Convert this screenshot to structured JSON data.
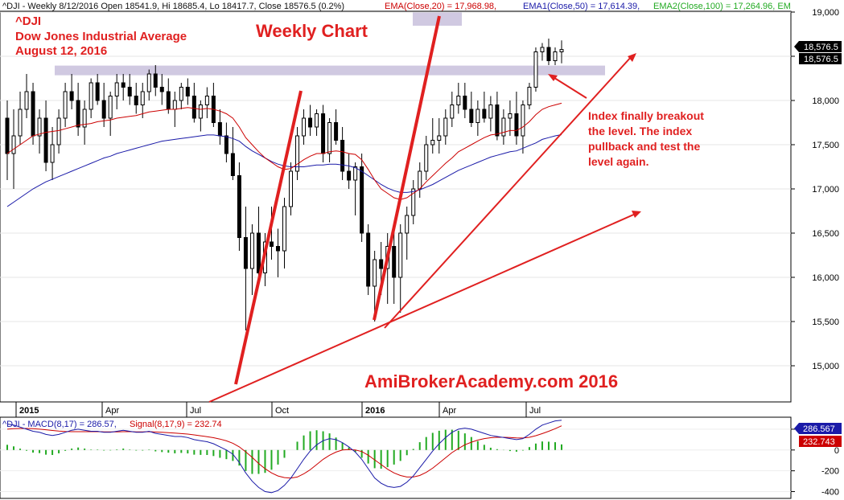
{
  "header": {
    "title_text": "^DJI - Weekly 8/12/2016 Open 18541.9, Hi 18685.4, Lo 18417.7, Close 18576.5 (0.2%)",
    "ema20_text": "EMA(Close,20) = 17,968.98,",
    "ema50_text": "EMA1(Close,50) = 17,614.39,",
    "ema100_text": "EMA2(Close,100) = 17,264.96, EM"
  },
  "overlay": {
    "ticker": "^DJI",
    "index_name": "Dow Jones Industrial Average",
    "date": "August 12, 2016",
    "chart_heading": "Weekly Chart",
    "watermark": "AmiBrokerAcademy.com  2016",
    "annotation_lines": [
      "Index finally breakout",
      "the level. The index",
      "pullback and test the",
      "level again."
    ]
  },
  "colors": {
    "annotation_red": "#e02020",
    "ema20": "#cc0000",
    "ema50": "#1a1aa8",
    "ema100": "#22aa22",
    "resistance_band": "#c8c0dc",
    "macd_line": "#1a1aa8",
    "signal_line": "#cc0000",
    "histogram": "#22aa22",
    "price_tag_bg": "#000000",
    "macd_tag_bg": "#1a1aa8",
    "signal_tag_bg": "#cc0000"
  },
  "chart_data": [
    {
      "type": "candlestick",
      "x_labels": [
        "2015",
        "Apr",
        "Jul",
        "Oct",
        "2016",
        "Apr",
        "Jul"
      ],
      "yticks": [
        15000,
        15500,
        16000,
        16500,
        17000,
        17500,
        18000,
        18500,
        19000
      ],
      "ylim": [
        14600,
        19000
      ],
      "last_price_tags": [
        "18,576.5",
        "18,576.5"
      ],
      "resistance_level": 18340,
      "candles_ohlc": [
        [
          17800,
          18000,
          17100,
          17400
        ],
        [
          17400,
          17900,
          17000,
          17600
        ],
        [
          17600,
          18100,
          17500,
          17900
        ],
        [
          17900,
          18300,
          17800,
          18100
        ],
        [
          18100,
          18200,
          17500,
          17600
        ],
        [
          17600,
          17900,
          17400,
          17800
        ],
        [
          17800,
          18000,
          17200,
          17300
        ],
        [
          17300,
          17700,
          17100,
          17500
        ],
        [
          17500,
          17900,
          17400,
          17800
        ],
        [
          17800,
          18200,
          17700,
          18100
        ],
        [
          18100,
          18300,
          17900,
          18000
        ],
        [
          18000,
          18200,
          17600,
          17700
        ],
        [
          17700,
          18000,
          17500,
          17900
        ],
        [
          17900,
          18250,
          17800,
          18200
        ],
        [
          18200,
          18300,
          17950,
          18000
        ],
        [
          18000,
          18200,
          17700,
          17800
        ],
        [
          17800,
          18100,
          17600,
          18050
        ],
        [
          18050,
          18300,
          17900,
          18200
        ],
        [
          18200,
          18300,
          18000,
          18150
        ],
        [
          18150,
          18300,
          17950,
          18050
        ],
        [
          18050,
          18200,
          17850,
          17950
        ],
        [
          17950,
          18200,
          17800,
          18100
        ],
        [
          18100,
          18350,
          18000,
          18300
        ],
        [
          18300,
          18400,
          18050,
          18150
        ],
        [
          18150,
          18300,
          17950,
          18100
        ],
        [
          18100,
          18250,
          17850,
          17900
        ],
        [
          17900,
          18100,
          17700,
          18000
        ],
        [
          18000,
          18200,
          17900,
          18150
        ],
        [
          18150,
          18250,
          17950,
          18050
        ],
        [
          18050,
          18200,
          17750,
          17800
        ],
        [
          17800,
          18000,
          17650,
          17950
        ],
        [
          17950,
          18150,
          17800,
          18050
        ],
        [
          18050,
          18200,
          17700,
          17750
        ],
        [
          17750,
          17900,
          17500,
          17600
        ],
        [
          17600,
          17750,
          17300,
          17400
        ],
        [
          17400,
          17700,
          17100,
          17150
        ],
        [
          17150,
          17300,
          16300,
          16450
        ],
        [
          16450,
          16800,
          15400,
          16100
        ],
        [
          16100,
          16600,
          15800,
          16500
        ],
        [
          16500,
          16800,
          16000,
          16050
        ],
        [
          16050,
          16500,
          15900,
          16400
        ],
        [
          16400,
          16800,
          16200,
          16350
        ],
        [
          16350,
          16550,
          16000,
          16300
        ],
        [
          16300,
          16900,
          16100,
          16800
        ],
        [
          16800,
          17300,
          16700,
          17200
        ],
        [
          17200,
          17700,
          17100,
          17600
        ],
        [
          17600,
          17900,
          17500,
          17800
        ],
        [
          17800,
          17950,
          17600,
          17700
        ],
        [
          17700,
          17900,
          17600,
          17850
        ],
        [
          17850,
          17950,
          17300,
          17400
        ],
        [
          17400,
          17800,
          17300,
          17750
        ],
        [
          17750,
          17900,
          17500,
          17550
        ],
        [
          17550,
          17700,
          17100,
          17200
        ],
        [
          17200,
          17400,
          17000,
          17100
        ],
        [
          17100,
          17300,
          16700,
          17250
        ],
        [
          17250,
          17400,
          16400,
          16500
        ],
        [
          16500,
          16600,
          15800,
          15900
        ],
        [
          15900,
          16300,
          15500,
          16200
        ],
        [
          16200,
          16400,
          15800,
          16100
        ],
        [
          16100,
          16500,
          15700,
          16350
        ],
        [
          16350,
          16600,
          15700,
          16000
        ],
        [
          16000,
          16600,
          15600,
          16500
        ],
        [
          16500,
          16800,
          16200,
          16700
        ],
        [
          16700,
          17100,
          16600,
          17000
        ],
        [
          17000,
          17300,
          16900,
          17200
        ],
        [
          17200,
          17600,
          17100,
          17500
        ],
        [
          17500,
          17800,
          17400,
          17550
        ],
        [
          17550,
          17800,
          17400,
          17600
        ],
        [
          17600,
          17900,
          17500,
          17800
        ],
        [
          17800,
          18100,
          17700,
          17950
        ],
        [
          17950,
          18200,
          17850,
          18050
        ],
        [
          18050,
          18200,
          17800,
          17900
        ],
        [
          17900,
          18100,
          17700,
          17750
        ],
        [
          17750,
          18000,
          17600,
          17900
        ],
        [
          17900,
          18100,
          17750,
          17800
        ],
        [
          17800,
          18050,
          17650,
          17950
        ],
        [
          17950,
          18100,
          17550,
          17600
        ],
        [
          17600,
          17900,
          17500,
          17800
        ],
        [
          17800,
          18000,
          17600,
          17850
        ],
        [
          17850,
          18100,
          17500,
          17600
        ],
        [
          17600,
          18000,
          17400,
          17950
        ],
        [
          17950,
          18200,
          17900,
          18150
        ],
        [
          18150,
          18600,
          18100,
          18550
        ],
        [
          18550,
          18650,
          18450,
          18600
        ],
        [
          18600,
          18700,
          18400,
          18450
        ],
        [
          18450,
          18600,
          18400,
          18550
        ],
        [
          18550,
          18680,
          18420,
          18576
        ]
      ],
      "ema20": [
        17400,
        17450,
        17500,
        17550,
        17600,
        17620,
        17640,
        17650,
        17660,
        17680,
        17700,
        17720,
        17730,
        17740,
        17760,
        17770,
        17780,
        17800,
        17810,
        17820,
        17830,
        17850,
        17870,
        17880,
        17890,
        17900,
        17900,
        17910,
        17920,
        17910,
        17900,
        17910,
        17900,
        17880,
        17850,
        17800,
        17700,
        17580,
        17500,
        17420,
        17350,
        17300,
        17250,
        17220,
        17230,
        17280,
        17330,
        17370,
        17400,
        17400,
        17420,
        17430,
        17420,
        17400,
        17390,
        17330,
        17220,
        17100,
        17000,
        16950,
        16900,
        16880,
        16900,
        16950,
        17000,
        17080,
        17150,
        17220,
        17290,
        17350,
        17420,
        17460,
        17500,
        17540,
        17580,
        17610,
        17620,
        17640,
        17660,
        17660,
        17700,
        17760,
        17840,
        17900,
        17930,
        17950,
        17969
      ],
      "ema50": [
        16800,
        16850,
        16900,
        16950,
        17000,
        17040,
        17080,
        17110,
        17140,
        17170,
        17200,
        17230,
        17260,
        17290,
        17320,
        17350,
        17370,
        17400,
        17420,
        17440,
        17460,
        17480,
        17500,
        17520,
        17540,
        17550,
        17560,
        17570,
        17580,
        17590,
        17600,
        17610,
        17610,
        17600,
        17590,
        17570,
        17540,
        17480,
        17430,
        17390,
        17350,
        17310,
        17280,
        17260,
        17250,
        17250,
        17250,
        17260,
        17270,
        17270,
        17280,
        17280,
        17270,
        17260,
        17240,
        17200,
        17150,
        17100,
        17050,
        17010,
        16980,
        16960,
        16960,
        16970,
        16990,
        17020,
        17050,
        17090,
        17130,
        17170,
        17210,
        17240,
        17270,
        17300,
        17330,
        17360,
        17380,
        17400,
        17420,
        17430,
        17460,
        17490,
        17520,
        17560,
        17580,
        17600,
        17614
      ]
    },
    {
      "type": "macd",
      "title_text": "^DJI - MACD(8,17) = 286.57,",
      "signal_text": "Signal(8,17,9) = 232.74",
      "yticks": [
        -400,
        -200,
        0,
        200
      ],
      "ylim": [
        -450,
        300
      ],
      "last_value_tags": [
        "286.567",
        "232.743"
      ],
      "macd": [
        250,
        240,
        220,
        200,
        180,
        170,
        150,
        140,
        150,
        170,
        190,
        200,
        190,
        180,
        180,
        170,
        170,
        180,
        190,
        180,
        170,
        170,
        180,
        160,
        150,
        140,
        130,
        130,
        120,
        100,
        90,
        80,
        60,
        30,
        0,
        -40,
        -120,
        -220,
        -300,
        -360,
        -400,
        -410,
        -390,
        -340,
        -270,
        -180,
        -90,
        -10,
        50,
        90,
        110,
        100,
        70,
        30,
        -20,
        -90,
        -180,
        -270,
        -320,
        -350,
        -360,
        -350,
        -310,
        -250,
        -170,
        -90,
        -10,
        60,
        120,
        170,
        200,
        210,
        200,
        180,
        160,
        140,
        130,
        120,
        110,
        100,
        110,
        150,
        200,
        240,
        260,
        280,
        287
      ],
      "signal": [
        200,
        205,
        207,
        207,
        205,
        200,
        195,
        188,
        182,
        178,
        176,
        176,
        176,
        176,
        176,
        175,
        174,
        175,
        176,
        176,
        175,
        175,
        176,
        173,
        170,
        166,
        162,
        158,
        153,
        145,
        137,
        128,
        118,
        105,
        88,
        65,
        30,
        -18,
        -70,
        -130,
        -180,
        -220,
        -250,
        -265,
        -270,
        -260,
        -230,
        -190,
        -140,
        -90,
        -50,
        -20,
        0,
        5,
        0,
        -15,
        -50,
        -95,
        -140,
        -185,
        -220,
        -245,
        -260,
        -260,
        -245,
        -215,
        -175,
        -125,
        -75,
        -25,
        15,
        50,
        75,
        95,
        110,
        118,
        122,
        122,
        120,
        116,
        115,
        122,
        138,
        158,
        180,
        205,
        233
      ]
    }
  ]
}
